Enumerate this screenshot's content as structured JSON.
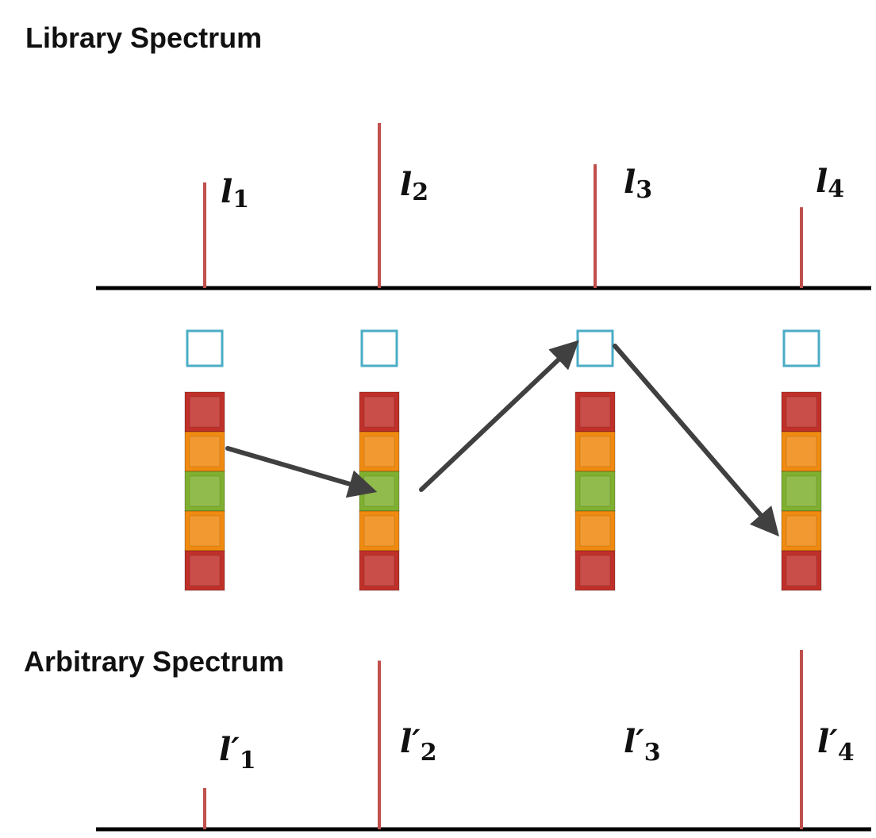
{
  "colors": {
    "axis": "#000000",
    "peak": "#c0504d",
    "marker": "#4bacc6",
    "arrow": "#404040",
    "block_red": "#c0302a",
    "block_orange": "#f08a10",
    "block_green": "#7fb030"
  },
  "library": {
    "title": "Library Spectrum",
    "peaks": [
      {
        "label": "l",
        "sub": "1",
        "height": 0.64
      },
      {
        "label": "l",
        "sub": "2",
        "height": 1.0
      },
      {
        "label": "l",
        "sub": "3",
        "height": 0.75
      },
      {
        "label": "l",
        "sub": "4",
        "height": 0.49
      }
    ]
  },
  "arbitrary": {
    "title": "Arbitrary Spectrum",
    "peaks": [
      {
        "label": "l′",
        "sub": "1",
        "height": 0.23
      },
      {
        "label": "l′",
        "sub": "2",
        "height": 0.94
      },
      {
        "label": "l′",
        "sub": "3",
        "height": 0
      },
      {
        "label": "l′",
        "sub": "4",
        "height": 1.0
      }
    ]
  },
  "columns": [
    {
      "blocks": [
        "red",
        "orange",
        "green",
        "orange",
        "red"
      ]
    },
    {
      "blocks": [
        "red",
        "orange",
        "green",
        "orange",
        "red"
      ]
    },
    {
      "blocks": [
        "red",
        "orange",
        "green",
        "orange",
        "red"
      ]
    },
    {
      "blocks": [
        "red",
        "orange",
        "green",
        "orange",
        "red"
      ]
    }
  ],
  "path": {
    "steps": [
      {
        "from_column": 1,
        "from_block": "orange",
        "to_column": 2,
        "to_block": "green"
      },
      {
        "from_column": 2,
        "from_block": "green",
        "to_column": 3,
        "to_block": "marker"
      },
      {
        "from_column": 3,
        "from_block": "marker",
        "to_column": 4,
        "to_block": "lower orange"
      }
    ]
  }
}
